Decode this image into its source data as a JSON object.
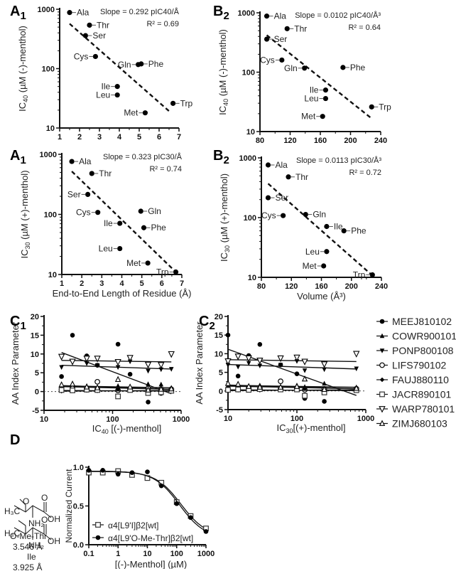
{
  "chart_data": [
    {
      "id": "A1_top",
      "panel": "A",
      "panel_sub": "1",
      "type": "scatter",
      "xscale": "linear",
      "yscale": "log",
      "xlim": [
        1,
        7
      ],
      "ylim": [
        10,
        1000
      ],
      "xticks": [
        1,
        2,
        3,
        4,
        5,
        6,
        7
      ],
      "yticks": [
        10,
        100,
        1000
      ],
      "ylabel_main": "IC",
      "ylabel_sub": "40",
      "ylabel_rest": " (µM (-)-menthol)",
      "xlabel": "",
      "annotation": [
        "Slope = 0.292 pIC40/Å",
        "R² = 0.69"
      ],
      "points": [
        {
          "name": "Ala",
          "x": 1.5,
          "y": 880
        },
        {
          "name": "Thr",
          "x": 2.5,
          "y": 540
        },
        {
          "name": "Ser",
          "x": 2.3,
          "y": 360
        },
        {
          "name": "Cys",
          "x": 2.8,
          "y": 160
        },
        {
          "name": "Gln",
          "x": 4.95,
          "y": 117
        },
        {
          "name": "Phe",
          "x": 5.1,
          "y": 120
        },
        {
          "name": "Ile",
          "x": 3.9,
          "y": 50
        },
        {
          "name": "Leu",
          "x": 3.9,
          "y": 36
        },
        {
          "name": "Met",
          "x": 5.3,
          "y": 18
        },
        {
          "name": "Trp",
          "x": 6.7,
          "y": 26
        }
      ],
      "fit": {
        "x": [
          1.5,
          6.6
        ],
        "y": [
          570,
          18
        ]
      }
    },
    {
      "id": "B2_top",
      "panel": "B",
      "panel_sub": "2",
      "type": "scatter",
      "xscale": "linear",
      "yscale": "log",
      "xlim": [
        80,
        240
      ],
      "ylim": [
        10,
        1000
      ],
      "xticks": [
        80,
        120,
        160,
        200,
        240
      ],
      "yticks": [
        10,
        100,
        1000
      ],
      "ylabel_main": "IC",
      "ylabel_sub": "40",
      "ylabel_rest": " (µM (-)-menthol)",
      "xlabel": "",
      "annotation": [
        "Slope = 0.0102 pIC40/Å³",
        "R² = 0.64"
      ],
      "points": [
        {
          "name": "Ala",
          "x": 89,
          "y": 880
        },
        {
          "name": "Thr",
          "x": 116,
          "y": 540
        },
        {
          "name": "Ser",
          "x": 89,
          "y": 360
        },
        {
          "name": "Cys",
          "x": 109,
          "y": 160
        },
        {
          "name": "Gln",
          "x": 139,
          "y": 117
        },
        {
          "name": "Phe",
          "x": 190,
          "y": 120
        },
        {
          "name": "Ile",
          "x": 167,
          "y": 50
        },
        {
          "name": "Leu",
          "x": 167,
          "y": 36
        },
        {
          "name": "Met",
          "x": 163,
          "y": 18
        },
        {
          "name": "Trp",
          "x": 228,
          "y": 26
        }
      ],
      "fit": {
        "x": [
          89,
          227
        ],
        "y": [
          420,
          17
        ]
      }
    },
    {
      "id": "A1_bottom",
      "panel": "A",
      "panel_sub": "1",
      "type": "scatter",
      "xscale": "linear",
      "yscale": "log",
      "xlim": [
        1,
        7
      ],
      "ylim": [
        10,
        1000
      ],
      "xticks": [
        1,
        2,
        3,
        4,
        5,
        6,
        7
      ],
      "yticks": [
        10,
        100,
        1000
      ],
      "ylabel_main": "IC",
      "ylabel_sub": "30",
      "ylabel_rest": " (µM (+)-menthol)",
      "xlabel": "End-to-End Length of Residue (Å)",
      "annotation": [
        "Slope = 0.323 pIC30/Å",
        "R² = 0.74"
      ],
      "points": [
        {
          "name": "Ala",
          "x": 1.5,
          "y": 760
        },
        {
          "name": "Thr",
          "x": 2.5,
          "y": 480
        },
        {
          "name": "Ser",
          "x": 2.3,
          "y": 215
        },
        {
          "name": "Cys",
          "x": 2.8,
          "y": 108
        },
        {
          "name": "Gln",
          "x": 4.95,
          "y": 113
        },
        {
          "name": "Phe",
          "x": 5.1,
          "y": 60
        },
        {
          "name": "Ile",
          "x": 3.9,
          "y": 71
        },
        {
          "name": "Leu",
          "x": 3.9,
          "y": 27
        },
        {
          "name": "Met",
          "x": 5.3,
          "y": 15.5
        },
        {
          "name": "Trp",
          "x": 6.7,
          "y": 11
        }
      ],
      "fit": {
        "x": [
          1.5,
          6.7
        ],
        "y": [
          520,
          11
        ]
      }
    },
    {
      "id": "B2_bottom",
      "panel": "B",
      "panel_sub": "2",
      "type": "scatter",
      "xscale": "linear",
      "yscale": "log",
      "xlim": [
        80,
        240
      ],
      "ylim": [
        10,
        1000
      ],
      "xticks": [
        80,
        120,
        160,
        200,
        240
      ],
      "yticks": [
        10,
        100,
        1000
      ],
      "ylabel_main": "IC",
      "ylabel_sub": "30",
      "ylabel_rest": " (µM (+)-menthol)",
      "xlabel": "Volume (Å³)",
      "annotation": [
        "Slope = 0.0113 pIC30/Å³",
        "R² = 0.72"
      ],
      "points": [
        {
          "name": "Ala",
          "x": 89,
          "y": 760
        },
        {
          "name": "Thr",
          "x": 116,
          "y": 480
        },
        {
          "name": "Ser",
          "x": 89,
          "y": 215
        },
        {
          "name": "Cys",
          "x": 109,
          "y": 108
        },
        {
          "name": "Gln",
          "x": 139,
          "y": 113
        },
        {
          "name": "Ile",
          "x": 167,
          "y": 71
        },
        {
          "name": "Phe",
          "x": 190,
          "y": 60
        },
        {
          "name": "Leu",
          "x": 167,
          "y": 27
        },
        {
          "name": "Met",
          "x": 163,
          "y": 15.5
        },
        {
          "name": "Trp",
          "x": 228,
          "y": 11
        }
      ],
      "fit": {
        "x": [
          89,
          227
        ],
        "y": [
          370,
          11
        ]
      }
    },
    {
      "id": "C1",
      "panel": "C",
      "panel_sub": "1",
      "type": "scatter",
      "xscale": "log",
      "yscale": "linear",
      "xlim": [
        10,
        1000
      ],
      "ylim": [
        -5,
        20
      ],
      "xticks": [
        10,
        100,
        1000
      ],
      "yticks": [
        -5,
        0,
        5,
        10,
        15,
        20
      ],
      "ylabel": "AA Index Parameter",
      "xlabel_main": "IC",
      "xlabel_sub": "40",
      "xlabel_rest": " [(-)-menthol]",
      "x": [
        18,
        26,
        42,
        60,
        120,
        180,
        330,
        510,
        720
      ],
      "series": [
        {
          "name": "MEEJ810102",
          "marker": "circle-filled",
          "values": [
            4,
            15,
            9.5,
            7,
            12.6,
            4.6,
            -2.8,
            -0.5,
            0.5
          ],
          "fit": [
            10.4,
            -0.6
          ]
        },
        {
          "name": "COWR900101",
          "marker": "triangle-up-filled",
          "values": [
            1.5,
            1.3,
            1.5,
            1.2,
            1.5,
            1.1,
            2,
            1.9,
            1
          ],
          "fit": [
            1.5,
            1.0
          ]
        },
        {
          "name": "PONP800108",
          "marker": "triangle-down-filled",
          "values": [
            6.5,
            7.9,
            7.5,
            7,
            6.5,
            8,
            5.5,
            5.9,
            6
          ],
          "fit": [
            7.0,
            6.0
          ]
        },
        {
          "name": "LIFS790102",
          "marker": "circle-open",
          "values": [
            0.5,
            0.8,
            0.9,
            2.6,
            0.3,
            0.5,
            0.8,
            0.6,
            0.6
          ],
          "fit": [
            1.3,
            0.6
          ]
        },
        {
          "name": "FAUJ880110",
          "marker": "diamond-filled",
          "values": [
            0.1,
            0.2,
            0.3,
            0.2,
            0.6,
            0.5,
            0.3,
            0.3,
            0.2
          ],
          "fit": [
            0.1,
            0.3
          ]
        },
        {
          "name": "JACR890101",
          "marker": "square-open",
          "values": [
            0.4,
            0.3,
            0.5,
            0.4,
            -1.3,
            0.4,
            -0.4,
            -0.2,
            0.2
          ],
          "fit": [
            0.3,
            0.1
          ]
        },
        {
          "name": "WARP780101",
          "marker": "triangle-down-open",
          "values": [
            9.3,
            8,
            8.8,
            8.8,
            7.9,
            9,
            7.2,
            7.1,
            10
          ],
          "fit": [
            8.3,
            7.9
          ]
        },
        {
          "name": "ZIMJ680103",
          "marker": "triangle-up-open",
          "values": [
            1.8,
            2,
            1.2,
            1,
            3.2,
            1.2,
            0.4,
            0.6,
            0.7
          ],
          "fit": [
            1.6,
            0.6
          ]
        }
      ]
    },
    {
      "id": "C2",
      "panel": "C",
      "panel_sub": "2",
      "type": "scatter",
      "xscale": "log",
      "yscale": "linear",
      "xlim": [
        10,
        1000
      ],
      "ylim": [
        -5,
        20
      ],
      "xticks": [
        10,
        100,
        1000
      ],
      "yticks": [
        -5,
        0,
        5,
        10,
        15,
        20
      ],
      "ylabel": "AA Index Parameter",
      "xlabel_main": "IC",
      "xlabel_sub": "30",
      "xlabel_rest": "[(+)-menthol]",
      "x": [
        10,
        14,
        20,
        29,
        58,
        100,
        130,
        250,
        730
      ],
      "series": [
        {
          "name": "MEEJ810102",
          "marker": "circle-filled",
          "values": [
            15,
            4,
            9.5,
            12.5,
            7,
            4.6,
            -2,
            -2.8,
            0.5
          ],
          "fit": [
            11.2,
            -1.2
          ]
        },
        {
          "name": "COWR900101",
          "marker": "triangle-up-filled",
          "values": [
            1.5,
            1.3,
            1.2,
            1.5,
            1.2,
            1.5,
            1.1,
            2,
            1
          ],
          "fit": [
            1.5,
            1.0
          ]
        },
        {
          "name": "PONP800108",
          "marker": "triangle-down-filled",
          "values": [
            7,
            6.5,
            7.5,
            6.8,
            7,
            8,
            5.5,
            5.8,
            6
          ],
          "fit": [
            7.1,
            5.9
          ]
        },
        {
          "name": "LIFS790102",
          "marker": "circle-open",
          "values": [
            0.5,
            0.5,
            0.8,
            0.9,
            2.6,
            0.6,
            0.3,
            0.5,
            0.6
          ],
          "fit": [
            1.3,
            0.6
          ]
        },
        {
          "name": "FAUJ880110",
          "marker": "diamond-filled",
          "values": [
            0.1,
            0.2,
            0.3,
            0.2,
            0.3,
            0.5,
            0.6,
            0.3,
            0.2
          ],
          "fit": [
            0.1,
            0.3
          ]
        },
        {
          "name": "JACR890101",
          "marker": "square-open",
          "values": [
            0.3,
            0.4,
            0.3,
            0.5,
            0.4,
            0.4,
            -1.3,
            -0.4,
            0.2
          ],
          "fit": [
            0.3,
            0.1
          ]
        },
        {
          "name": "WARP780101",
          "marker": "triangle-down-open",
          "values": [
            8,
            9.3,
            8.8,
            8.2,
            8.8,
            9,
            7.9,
            7.2,
            10
          ],
          "fit": [
            8.4,
            7.9
          ]
        },
        {
          "name": "ZIMJ680103",
          "marker": "triangle-up-open",
          "values": [
            2,
            1.8,
            1.2,
            1,
            1,
            1.2,
            3.2,
            0.4,
            0.7
          ],
          "fit": [
            1.6,
            0.6
          ]
        }
      ]
    },
    {
      "id": "D",
      "panel": "D",
      "panel_sub": "",
      "type": "line",
      "xscale": "log",
      "yscale": "linear",
      "xlim": [
        0.1,
        1000
      ],
      "ylim": [
        0,
        1.0
      ],
      "xticks": [
        0.1,
        1,
        10,
        100,
        1000
      ],
      "xticklabels": [
        "0.1",
        "1",
        "10",
        "100",
        "1000"
      ],
      "yticks": [
        0,
        0.5,
        1.0
      ],
      "yticklabels": [
        "0.0",
        "0.5",
        "1.0"
      ],
      "ylabel": "Normalized Current",
      "xlabel": "[(-)-Menthol] (µM)",
      "x": [
        0.1,
        0.3,
        1,
        3,
        10,
        30,
        100,
        300,
        1000
      ],
      "series": [
        {
          "name": "α4[L9'I]β2[wt]",
          "marker": "square-open",
          "values": [
            0.93,
            0.93,
            0.95,
            0.9,
            0.86,
            0.8,
            0.55,
            0.37,
            0.21
          ],
          "fit": {
            "top": 0.945,
            "bottom": 0.1,
            "ic50": 140,
            "hill": 1.0
          }
        },
        {
          "name": "α4[L9'O-Me-Thr]β2[wt]",
          "marker": "circle-filled",
          "values": [
            0.96,
            0.96,
            0.91,
            0.93,
            0.94,
            0.76,
            0.53,
            0.35,
            0.17
          ],
          "fit": {
            "top": 0.95,
            "bottom": 0.08,
            "ic50": 125,
            "hill": 1.0
          }
        }
      ]
    }
  ],
  "legend_C": [
    "MEEJ810102",
    "COWR900101",
    "PONP800108",
    "LIFS790102",
    "FAUJ880110",
    "JACR890101",
    "WARP780101",
    "ZIMJ680103"
  ],
  "structures": [
    {
      "name": "O-Me-Thr",
      "length": "3.546 Å",
      "substituent": "O",
      "ch3": "H₃C",
      "oh": "OH",
      "nh2": "NH₂",
      "carbonyl": "O"
    },
    {
      "name": "Ile",
      "length": "3.925 Å",
      "substituent": "",
      "ch3": "H₃C",
      "oh": "OH",
      "nh2": "NH₂",
      "carbonyl": "O"
    }
  ]
}
